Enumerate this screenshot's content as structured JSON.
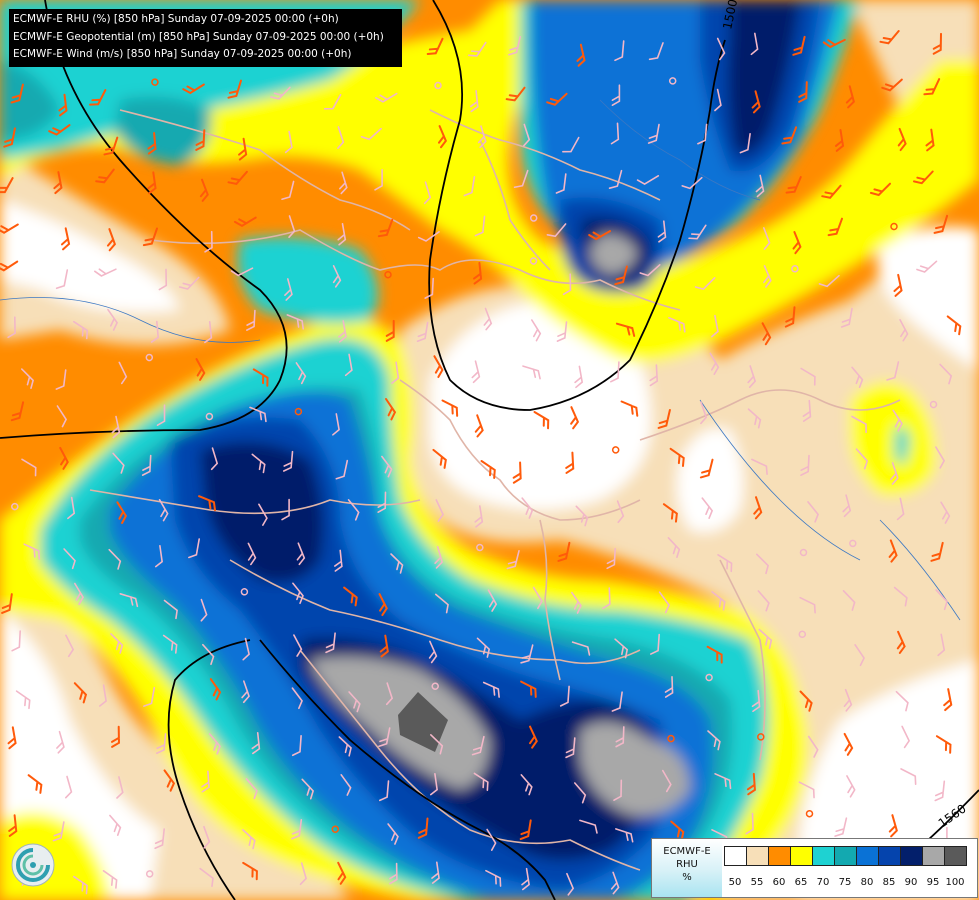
{
  "header": {
    "lines": [
      "ECMWF-E RHU (%) [850 hPa] Sunday 07-09-2025 00:00 (+0h)",
      "ECMWF-E Geopotential (m) [850 hPa] Sunday 07-09-2025 00:00 (+0h)",
      "ECMWF-E Wind (m/s) [850 hPa] Sunday 07-09-2025 00:00 (+0h)"
    ]
  },
  "contours": {
    "label_top": "1500",
    "label_bottom": "1560"
  },
  "legend": {
    "model": "ECMWF-E",
    "variable": "RHU",
    "unit": "%",
    "classes": [
      {
        "value": "50",
        "color": "#ffffff"
      },
      {
        "value": "55",
        "color": "#f7dfb8"
      },
      {
        "value": "60",
        "color": "#ff8c00"
      },
      {
        "value": "65",
        "color": "#ffff00"
      },
      {
        "value": "70",
        "color": "#1ed2d2"
      },
      {
        "value": "75",
        "color": "#13a9b0"
      },
      {
        "value": "80",
        "color": "#0a72d6"
      },
      {
        "value": "85",
        "color": "#0544ad"
      },
      {
        "value": "90",
        "color": "#031f6b"
      },
      {
        "value": "95",
        "color": "#a8a8a8"
      },
      {
        "value": "100",
        "color": "#5a5a5a"
      }
    ]
  },
  "colors": {
    "white": "#ffffff",
    "beige": "#f7dfb8",
    "orange": "#ff8c00",
    "yellow": "#ffff00",
    "cyan": "#1ed2d2",
    "teal": "#13a9b0",
    "blue": "#0a72d6",
    "mid_blue": "#0544ad",
    "navy": "#031f6b",
    "light_gray": "#a8a8a8",
    "dark_gray": "#5a5a5a",
    "barb_pink": "#f2b7c8",
    "barb_orange": "#ff5a0a",
    "border": "#e0b5a8",
    "river": "#3c78c3"
  }
}
